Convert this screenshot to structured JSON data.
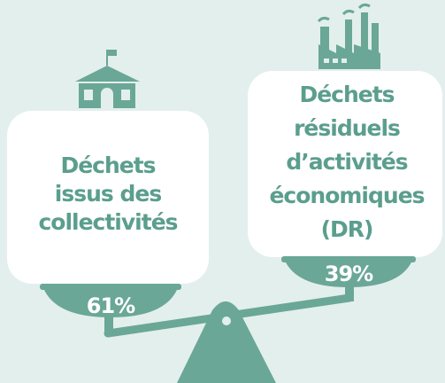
{
  "left": {
    "label_lines": [
      "Déchets",
      "issus des",
      "collectivités"
    ],
    "share": "61%"
  },
  "right": {
    "label_lines": [
      "Déchets",
      "résiduels",
      "d’activités",
      "économiques",
      "(DR)"
    ],
    "share": "39%"
  }
}
